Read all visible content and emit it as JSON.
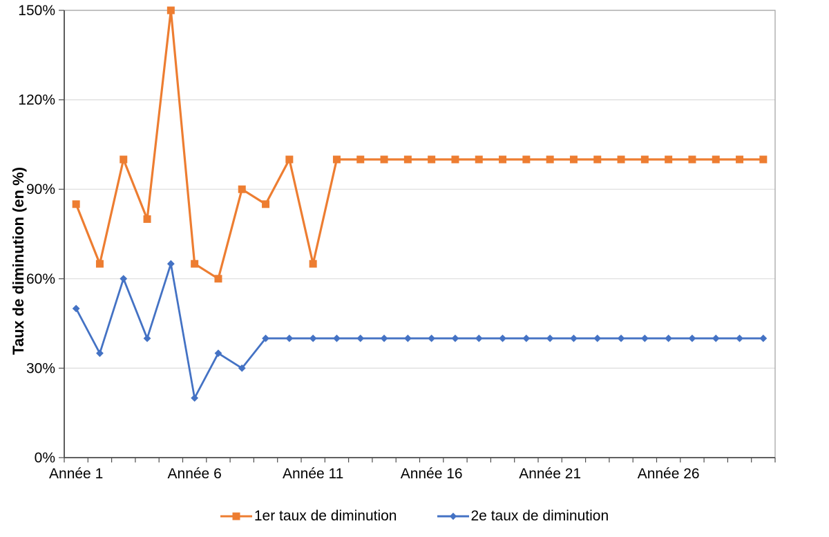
{
  "chart_data": {
    "type": "line",
    "title": "",
    "xlabel": "",
    "ylabel": "Taux de diminution (en %)",
    "ylim": [
      0,
      150
    ],
    "y_ticks": [
      0,
      30,
      60,
      90,
      120,
      150
    ],
    "y_tick_labels": [
      "0%",
      "30%",
      "60%",
      "90%",
      "120%",
      "150%"
    ],
    "x_tick_positions": [
      1,
      6,
      11,
      16,
      21,
      26
    ],
    "x_tick_labels": [
      "Année 1",
      "Année 6",
      "Année 11",
      "Année 16",
      "Année 21",
      "Année 26"
    ],
    "categories": [
      1,
      2,
      3,
      4,
      5,
      6,
      7,
      8,
      9,
      10,
      11,
      12,
      13,
      14,
      15,
      16,
      17,
      18,
      19,
      20,
      21,
      22,
      23,
      24,
      25,
      26,
      27,
      28,
      29,
      30
    ],
    "grid": "horizontal-major",
    "legend_position": "bottom",
    "series": [
      {
        "name": "1er taux de diminution",
        "color": "#ED7D31",
        "marker": "square",
        "values": [
          85,
          65,
          100,
          80,
          150,
          65,
          60,
          90,
          85,
          100,
          65,
          100,
          100,
          100,
          100,
          100,
          100,
          100,
          100,
          100,
          100,
          100,
          100,
          100,
          100,
          100,
          100,
          100,
          100,
          100
        ]
      },
      {
        "name": "2e taux de diminution",
        "color": "#4472C4",
        "marker": "diamond",
        "values": [
          50,
          35,
          60,
          40,
          65,
          20,
          35,
          30,
          40,
          40,
          40,
          40,
          40,
          40,
          40,
          40,
          40,
          40,
          40,
          40,
          40,
          40,
          40,
          40,
          40,
          40,
          40,
          40,
          40,
          40
        ]
      }
    ]
  },
  "colors": {
    "background": "#FFFFFF",
    "gridline": "#DCDCDC",
    "axis_line": "#4D4D4D",
    "plot_border": "#A6A6A6",
    "text": "#000000"
  }
}
